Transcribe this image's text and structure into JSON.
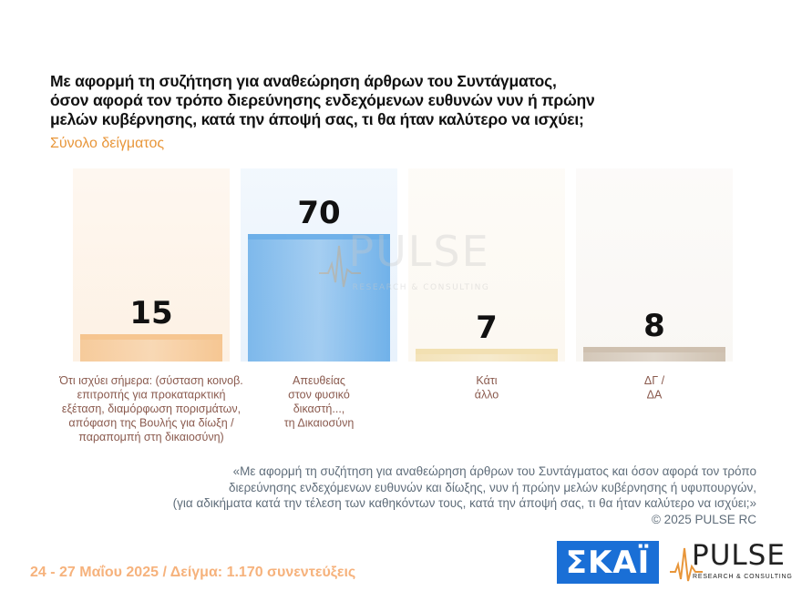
{
  "header": {
    "question_lines": [
      "Με αφορμή τη συζήτηση για αναθεώρηση άρθρων του Συντάγματος,",
      "όσον αφορά τον τρόπο διερεύνησης ενδεχόμενων ευθυνών νυν ή πρώην",
      "μελών κυβέρνησης, κατά την άποψή σας, τι θα ήταν καλύτερο να ισχύει;"
    ],
    "sample_label": "Σύνολο δείγματος"
  },
  "chart_data": {
    "type": "bar",
    "categories": [
      [
        "Ότι ισχύει σήμερα: (σύσταση κοινοβ.",
        "επιτροπής για προκαταρκτική",
        "εξέταση, διαμόρφωση πορισμάτων,",
        "απόφαση της Βουλής για δίωξη /",
        "παραπομπή στη δικαιοσύνη)"
      ],
      [
        "Απευθείας",
        "στον φυσικό",
        "δικαστή...,",
        "τη Δικαιοσύνη"
      ],
      [
        "Κάτι",
        "άλλο"
      ],
      [
        "ΔΓ /",
        "ΔΑ"
      ]
    ],
    "values": [
      15,
      70,
      7,
      8
    ],
    "colors": [
      "#f5c48e",
      "#6aaee8",
      "#f2dfb0",
      "#cdbfae"
    ],
    "background_colors": [
      "#fdf1e4",
      "#e8f2fc",
      "#fcf8f1",
      "#f9f7f4"
    ],
    "ylim": [
      0,
      100
    ],
    "title": "",
    "xlabel": "",
    "ylabel": ""
  },
  "watermark": {
    "word": "PULSE",
    "tagline": "RESEARCH & CONSULTING"
  },
  "quote": {
    "lines": [
      "«Με αφορμή τη συζήτηση για αναθεώρηση άρθρων του Συντάγματος και όσον αφορά τον τρόπο",
      "διερεύνησης ενδεχόμενων ευθυνών και δίωξης, νυν ή πρώην μελών κυβέρνησης ή υφυπουργών,",
      "(για αδικήματα κατά την τέλεση των καθηκόντων τους, κατά την άποψή σας, τι θα ήταν καλύτερο να ισχύει;»",
      "©  2025  PULSE RC"
    ]
  },
  "footer": {
    "date_sample": "24 - 27 Μαΐου 2025  /  Δείγμα:  1.170 συνεντεύξεις",
    "logo_skai": "ΣΚΑΪ",
    "logo_pulse": "PULSE",
    "logo_pulse_tagline": "RESEARCH & CONSULTING"
  }
}
